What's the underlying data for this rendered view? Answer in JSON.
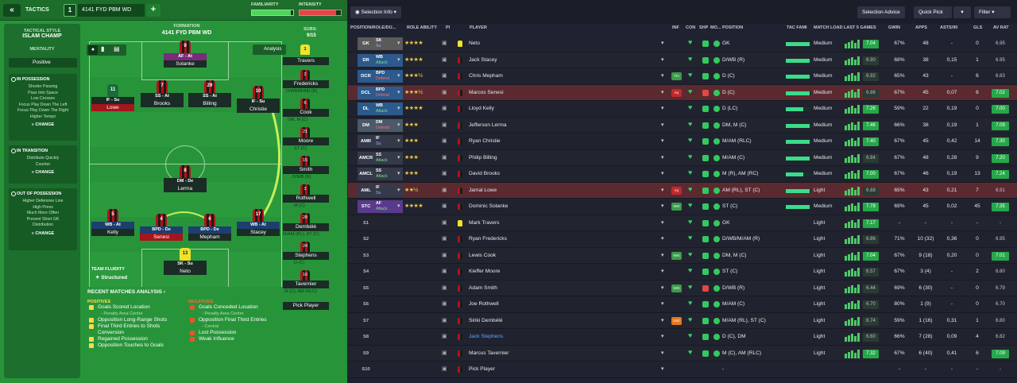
{
  "left": {
    "tactics_label": "TACTICS",
    "slot": "1",
    "tactic_name": "4141 FYD PBM  WD",
    "familiarity_label": "FAMILIARITY",
    "intensity_label": "INTENSITY",
    "familiarity_level": 0.95,
    "intensity_level": 0.88,
    "tactical_style_label": "TACTICAL STYLE",
    "tactical_style": "ISLAM CHAMP",
    "mentality_label": "MENTALITY",
    "mentality": "Positive",
    "in_possession": {
      "title": "IN POSSESSION",
      "lines": [
        "Shorter Passing",
        "Pass Into Space",
        "Low Crosses",
        "Focus Play Down The Left",
        "Focus Play Down The Right",
        "Higher Tempo"
      ],
      "change": "CHANGE"
    },
    "in_transition": {
      "title": "IN TRANSITION",
      "lines": [
        "Distribute Quickly",
        "Counter"
      ],
      "change": "CHANGE"
    },
    "out_of_possession": {
      "title": "OUT OF POSSESSION",
      "lines": [
        "Higher Defensive Line",
        "High Press",
        "Much More Often",
        "Prevent Short GK",
        "Distribution"
      ],
      "change": "CHANGE"
    },
    "formation_label": "FORMATION",
    "formation": "4141 FYD PBM  WD",
    "subs_label": "SUBS:",
    "subs_count": "9/15",
    "analysis": "Analysis",
    "team_fluidity_label": "TEAM FLUIDITY",
    "team_fluidity": "Structured",
    "players": [
      {
        "num": "9",
        "role": "AF - At",
        "name": "Solanke"
      },
      {
        "num": "11",
        "role": "IF - Su",
        "name": "Lowe"
      },
      {
        "num": "7",
        "role": "SS - At",
        "name": "Brooks"
      },
      {
        "num": "29",
        "role": "SS - At",
        "name": "Billing"
      },
      {
        "num": "10",
        "role": "IF - Su",
        "name": "Christie"
      },
      {
        "num": "8",
        "role": "DM - De",
        "name": "Lerma"
      },
      {
        "num": "5",
        "role": "WB - At",
        "name": "Kelly"
      },
      {
        "num": "4",
        "role": "BPD - De",
        "name": "Senesi"
      },
      {
        "num": "6",
        "role": "BPD - De",
        "name": "Mepham"
      },
      {
        "num": "17",
        "role": "WB - At",
        "name": "Stacey"
      },
      {
        "num": "13",
        "role": "SK - Su",
        "name": "Neto"
      }
    ],
    "subs": [
      {
        "num": "1",
        "name": "Travers",
        "pos": "GK"
      },
      {
        "num": "2",
        "name": "Fredericks",
        "pos": "D/WB/M/AM (R)"
      },
      {
        "num": "6",
        "name": "Cook",
        "pos": "DM, M (C)"
      },
      {
        "num": "21",
        "name": "Moore",
        "pos": "ST (C)"
      },
      {
        "num": "15",
        "name": "Smith",
        "pos": "D/WB (R)"
      },
      {
        "num": "3",
        "name": "Rothwell",
        "pos": "M (C)"
      },
      {
        "num": "28",
        "name": "Dembélé",
        "pos": "M/AM (RL), ST (C)"
      },
      {
        "num": "24",
        "name": "Stephens",
        "pos": "D (C)"
      },
      {
        "num": "16",
        "name": "Tavernier",
        "pos": "M (C), AM (RLC)"
      },
      {
        "num": "",
        "name": "Pick Player",
        "pos": ""
      }
    ],
    "recent_title": "RECENT MATCHES ANALYSIS",
    "positives_label": "POSITIVES",
    "positives": [
      {
        "text": "Goals Scored Location",
        "sub": "- Penalty Area Centre"
      },
      {
        "text": "Opposition Long-Range Shots",
        "sub": ""
      },
      {
        "text": "Final Third Entries to Shots Conversion",
        "sub": ""
      },
      {
        "text": "Regained Possession",
        "sub": ""
      },
      {
        "text": "Opposition Touches to Goals",
        "sub": ""
      }
    ],
    "negatives_label": "NEGATIVES",
    "negatives": [
      {
        "text": "Goals Conceded Location",
        "sub": "- Penalty Area Centre"
      },
      {
        "text": "Opposition Final Third Entries",
        "sub": "- Central"
      },
      {
        "text": "Lost Possession",
        "sub": ""
      },
      {
        "text": "Weak Influence",
        "sub": ""
      }
    ]
  },
  "right": {
    "selection_info": "Selection Info",
    "selection_advice": "Selection Advice",
    "quick_pick": "Quick Pick",
    "filter": "Filter",
    "headers": [
      "POSITION/ROLE/DU...",
      "ROLE ABILITY",
      "PI",
      "PLAYER",
      "INF",
      "CON",
      "SHP",
      "MO...",
      "POSITION",
      "TAC FAMI",
      "MATCH LOAD",
      "LAST 5 GAMES",
      "GWIN",
      "APPS",
      "ASTS/90",
      "GLS",
      "AV RAT"
    ],
    "rows": [
      {
        "pos": "GK",
        "role": "SK",
        "duty": "Su",
        "stars": "★★★★",
        "player": "Neto",
        "inf": "",
        "position": "GK",
        "fam": 0.95,
        "load": "Medium",
        "avg": "7.04",
        "gwin": "67%",
        "apps": "48",
        "asts": "-",
        "gls": "0",
        "avrat": "6.95"
      },
      {
        "pos": "DR",
        "role": "WB",
        "duty": "Attack",
        "stars": "★★★★",
        "player": "Jack Stacey",
        "inf": "",
        "position": "D/WB (R)",
        "fam": 0.95,
        "load": "Medium",
        "avg": "6.90",
        "gwin": "68%",
        "apps": "38",
        "asts": "0,15",
        "gls": "1",
        "avrat": "6.95"
      },
      {
        "pos": "DCR",
        "role": "BPD",
        "duty": "Defend",
        "stars": "★★★½",
        "player": "Chris Mepham",
        "inf": "Tm",
        "position": "D (C)",
        "fam": 0.95,
        "load": "Medium",
        "avg": "6.92",
        "gwin": "65%",
        "apps": "43",
        "asts": "-",
        "gls": "6",
        "avrat": "6.83"
      },
      {
        "pos": "DCL",
        "role": "BPD",
        "duty": "Defend",
        "stars": "★★★½",
        "player": "Marcos Senesi",
        "inf": "Inj",
        "position": "D (C)",
        "fam": 0.95,
        "load": "Medium",
        "avg": "6.86",
        "gwin": "67%",
        "apps": "45",
        "asts": "0,07",
        "gls": "6",
        "avrat": "7.02"
      },
      {
        "pos": "DL",
        "role": "WB",
        "duty": "Attack",
        "stars": "★★★★",
        "player": "Lloyd Kelly",
        "inf": "",
        "position": "D (LC)",
        "fam": 0.7,
        "load": "Medium",
        "avg": "7.26",
        "gwin": "59%",
        "apps": "22",
        "asts": "0,19",
        "gls": "0",
        "avrat": "7.00"
      },
      {
        "pos": "DM",
        "role": "DM",
        "duty": "Defend",
        "stars": "★★★",
        "player": "Jefferson Lerma",
        "inf": "",
        "position": "DM, M (C)",
        "fam": 0.95,
        "load": "Medium",
        "avg": "7.46",
        "gwin": "66%",
        "apps": "38",
        "asts": "0,19",
        "gls": "1",
        "avrat": "7.09"
      },
      {
        "pos": "AMR",
        "role": "IF",
        "duty": "Su",
        "stars": "★★★",
        "player": "Ryan Christie",
        "inf": "",
        "position": "M/AM (RLC)",
        "fam": 0.95,
        "load": "Medium",
        "avg": "7.40",
        "gwin": "67%",
        "apps": "45",
        "asts": "0,42",
        "gls": "14",
        "avrat": "7.30"
      },
      {
        "pos": "AMCR",
        "role": "SS",
        "duty": "Attack",
        "stars": "★★★",
        "player": "Philip Billing",
        "inf": "",
        "position": "M/AM (C)",
        "fam": 0.95,
        "load": "Medium",
        "avg": "6.84",
        "gwin": "67%",
        "apps": "48",
        "asts": "0,28",
        "gls": "9",
        "avrat": "7.20"
      },
      {
        "pos": "AMCL",
        "role": "SS",
        "duty": "Attack",
        "stars": "★★★",
        "player": "David Brooks",
        "inf": "",
        "position": "M (R), AM (RC)",
        "fam": 0.7,
        "load": "Medium",
        "avg": "7.00",
        "gwin": "67%",
        "apps": "46",
        "asts": "0,19",
        "gls": "13",
        "avrat": "7.24"
      },
      {
        "pos": "AML",
        "role": "IF",
        "duty": "Su",
        "stars": "★★½",
        "player": "Jamal Lowe",
        "inf": "Inj",
        "position": "AM (RL), ST (C)",
        "fam": 0.95,
        "load": "Light",
        "avg": "6.88",
        "gwin": "65%",
        "apps": "43",
        "asts": "0,21",
        "gls": "7",
        "avrat": "6.91"
      },
      {
        "pos": "STC",
        "role": "AF",
        "duty": "Attack",
        "stars": "★★★★",
        "player": "Dominic Solanke",
        "inf": "Wnt",
        "position": "ST (C)",
        "fam": 0.95,
        "load": "Medium",
        "avg": "7.78",
        "gwin": "69%",
        "apps": "45",
        "asts": "0,02",
        "gls": "45",
        "avrat": "7.35"
      },
      {
        "pos": "S1",
        "role": "",
        "duty": "",
        "stars": "",
        "player": "Mark Travers",
        "inf": "",
        "position": "GK",
        "fam": 0,
        "load": "Light",
        "avg": "7.17",
        "gwin": "-",
        "apps": "-",
        "asts": "-",
        "gls": "-",
        "avrat": "-"
      },
      {
        "pos": "S2",
        "role": "",
        "duty": "",
        "stars": "",
        "player": "Ryan Fredericks",
        "inf": "",
        "position": "D/WB/M/AM (R)",
        "fam": 0,
        "load": "Light",
        "avg": "6.86",
        "gwin": "71%",
        "apps": "10 (32)",
        "asts": "0,36",
        "gls": "0",
        "avrat": "6.95"
      },
      {
        "pos": "S3",
        "role": "",
        "duty": "",
        "stars": "",
        "player": "Lewis Cook",
        "inf": "Wnt",
        "position": "DM, M (C)",
        "fam": 0,
        "load": "Light",
        "avg": "7.04",
        "gwin": "67%",
        "apps": "9 (18)",
        "asts": "0,20",
        "gls": "0",
        "avrat": "7.01"
      },
      {
        "pos": "S4",
        "role": "",
        "duty": "",
        "stars": "",
        "player": "Kieffer Moore",
        "inf": "",
        "position": "ST (C)",
        "fam": 0,
        "load": "Light",
        "avg": "6.57",
        "gwin": "67%",
        "apps": "3 (4)",
        "asts": "-",
        "gls": "2",
        "avrat": "6.80"
      },
      {
        "pos": "S5",
        "role": "",
        "duty": "",
        "stars": "",
        "player": "Adam Smith",
        "inf": "Wnt",
        "position": "D/WB (R)",
        "fam": 0,
        "load": "Light",
        "avg": "6.44",
        "gwin": "69%",
        "apps": "6 (30)",
        "asts": "-",
        "gls": "0",
        "avrat": "6.79"
      },
      {
        "pos": "S6",
        "role": "",
        "duty": "",
        "stars": "",
        "player": "Joe Rothwell",
        "inf": "",
        "position": "M/AM (C)",
        "fam": 0,
        "load": "Light",
        "avg": "6.70",
        "gwin": "80%",
        "apps": "1 (9)",
        "asts": "-",
        "gls": "0",
        "avrat": "6.70"
      },
      {
        "pos": "S7",
        "role": "",
        "duty": "",
        "stars": "",
        "player": "Siriki Dembélé",
        "inf": "Unh",
        "position": "M/AM (RL), ST (C)",
        "fam": 0,
        "load": "Light",
        "avg": "6.74",
        "gwin": "59%",
        "apps": "1 (16)",
        "asts": "0,31",
        "gls": "1",
        "avrat": "6.80"
      },
      {
        "pos": "S8",
        "role": "",
        "duty": "",
        "stars": "",
        "player": "Jack Stephens",
        "inf": "",
        "position": "D (C), DM",
        "fam": 0,
        "load": "Light",
        "avg": "6.60",
        "gwin": "66%",
        "apps": "7 (28)",
        "asts": "0,09",
        "gls": "4",
        "avrat": "6.82"
      },
      {
        "pos": "S9",
        "role": "",
        "duty": "",
        "stars": "",
        "player": "Marcus Tavernier",
        "inf": "",
        "position": "M (C), AM (RLC)",
        "fam": 0,
        "load": "Light",
        "avg": "7.32",
        "gwin": "67%",
        "apps": "6 (40)",
        "asts": "0,41",
        "gls": "6",
        "avrat": "7.09"
      },
      {
        "pos": "S10",
        "role": "",
        "duty": "",
        "stars": "",
        "player": "Pick Player",
        "inf": "",
        "position": "-",
        "fam": 0,
        "load": "",
        "avg": "-",
        "gwin": "-",
        "apps": "-",
        "asts": "-",
        "gls": "-",
        "avrat": "-"
      }
    ]
  }
}
